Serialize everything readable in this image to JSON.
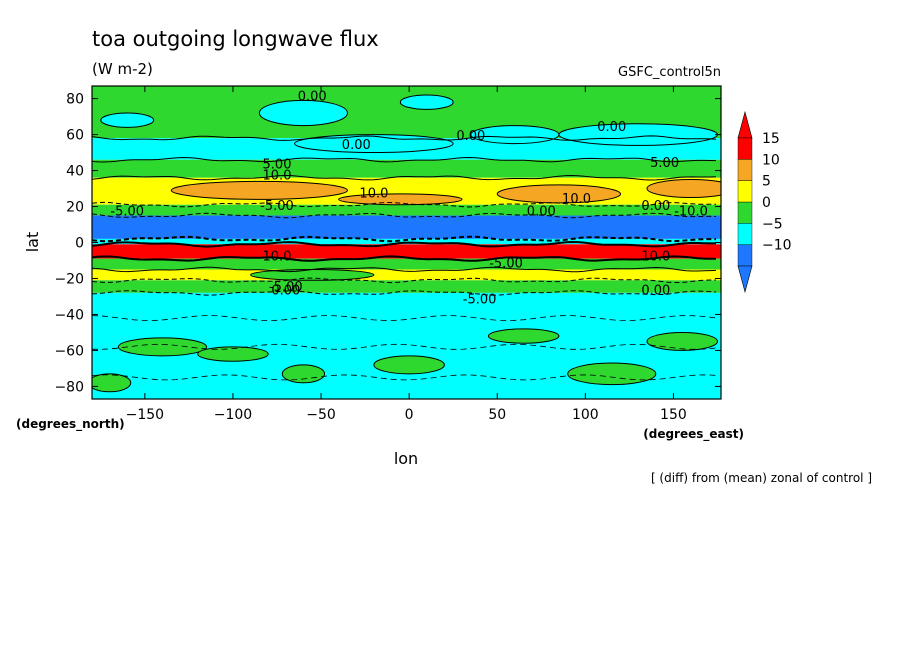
{
  "chart_data": {
    "type": "heatmap",
    "title": "toa outgoing longwave flux",
    "units": "(W m-2)",
    "dataset": "GSFC_control5n",
    "xlabel": "lon",
    "ylabel": "lat",
    "x_units": "(degrees_east)",
    "y_units": "(degrees_north)",
    "footnote": "[ (diff) from (mean) zonal of control ]",
    "xlim": [
      -180,
      177
    ],
    "ylim": [
      -87,
      87
    ],
    "x_ticks": [
      -150,
      -100,
      -50,
      0,
      50,
      100,
      150
    ],
    "y_ticks": [
      -80,
      -60,
      -40,
      -20,
      0,
      20,
      40,
      60,
      80
    ],
    "colorbar": {
      "levels": [
        "-10",
        "-5",
        "0",
        "5",
        "10",
        "15"
      ],
      "colors": [
        "#1e78ff",
        "#00ffff",
        "#2ed82e",
        "#ffff00",
        "#f5a623",
        "#ff0000"
      ],
      "extend": "both"
    },
    "bands": [
      {
        "lat_from": 58,
        "lat_to": 87,
        "color": "#2ed82e"
      },
      {
        "lat_from": 46,
        "lat_to": 58,
        "color": "#00ffff"
      },
      {
        "lat_from": 36,
        "lat_to": 46,
        "color": "#2ed82e"
      },
      {
        "lat_from": 21,
        "lat_to": 36,
        "color": "#ffff00"
      },
      {
        "lat_from": 15,
        "lat_to": 21,
        "color": "#2ed82e"
      },
      {
        "lat_from": 2,
        "lat_to": 15,
        "color": "#1e78ff"
      },
      {
        "lat_from": -1,
        "lat_to": 2,
        "color": "#00ffff"
      },
      {
        "lat_from": -9,
        "lat_to": -1,
        "color": "#ff0000"
      },
      {
        "lat_from": -15,
        "lat_to": -9,
        "color": "#2ed82e"
      },
      {
        "lat_from": -21,
        "lat_to": -15,
        "color": "#ffff00"
      },
      {
        "lat_from": -28,
        "lat_to": -21,
        "color": "#2ed82e"
      },
      {
        "lat_from": -87,
        "lat_to": -28,
        "color": "#00ffff"
      }
    ],
    "patches": [
      {
        "lon": -160,
        "lat": 68,
        "rx": 15,
        "ry": 4,
        "color": "#00ffff"
      },
      {
        "lon": -60,
        "lat": 72,
        "rx": 25,
        "ry": 7,
        "color": "#00ffff"
      },
      {
        "lon": 10,
        "lat": 78,
        "rx": 15,
        "ry": 4,
        "color": "#00ffff"
      },
      {
        "lon": -20,
        "lat": 55,
        "rx": 45,
        "ry": 5,
        "color": "#00ffff"
      },
      {
        "lon": 60,
        "lat": 60,
        "rx": 25,
        "ry": 5,
        "color": "#00ffff"
      },
      {
        "lon": 130,
        "lat": 60,
        "rx": 45,
        "ry": 6,
        "color": "#00ffff"
      },
      {
        "lon": -85,
        "lat": 29,
        "rx": 50,
        "ry": 5,
        "color": "#f5a623"
      },
      {
        "lon": -5,
        "lat": 24,
        "rx": 35,
        "ry": 3,
        "color": "#f5a623"
      },
      {
        "lon": 85,
        "lat": 27,
        "rx": 35,
        "ry": 5,
        "color": "#f5a623"
      },
      {
        "lon": 160,
        "lat": 30,
        "rx": 25,
        "ry": 5,
        "color": "#f5a623"
      },
      {
        "lon": -55,
        "lat": -18,
        "rx": 35,
        "ry": 3,
        "color": "#2ed82e"
      },
      {
        "lon": -140,
        "lat": -58,
        "rx": 25,
        "ry": 5,
        "color": "#2ed82e"
      },
      {
        "lon": -100,
        "lat": -62,
        "rx": 20,
        "ry": 4,
        "color": "#2ed82e"
      },
      {
        "lon": -60,
        "lat": -73,
        "rx": 12,
        "ry": 5,
        "color": "#2ed82e"
      },
      {
        "lon": 0,
        "lat": -68,
        "rx": 20,
        "ry": 5,
        "color": "#2ed82e"
      },
      {
        "lon": 65,
        "lat": -52,
        "rx": 20,
        "ry": 4,
        "color": "#2ed82e"
      },
      {
        "lon": 155,
        "lat": -55,
        "rx": 20,
        "ry": 5,
        "color": "#2ed82e"
      },
      {
        "lon": 115,
        "lat": -73,
        "rx": 25,
        "ry": 6,
        "color": "#2ed82e"
      },
      {
        "lon": -170,
        "lat": -78,
        "rx": 12,
        "ry": 5,
        "color": "#2ed82e"
      }
    ],
    "contour_labels": [
      {
        "text": "0.00",
        "lon": -55,
        "lat": 79
      },
      {
        "text": "0.00",
        "lon": 35,
        "lat": 57
      },
      {
        "text": "0.00",
        "lon": -30,
        "lat": 52
      },
      {
        "text": "0.00",
        "lon": 115,
        "lat": 62
      },
      {
        "text": "5.00",
        "lon": -75,
        "lat": 41
      },
      {
        "text": "5.00",
        "lon": 145,
        "lat": 42
      },
      {
        "text": "10.0",
        "lon": -75,
        "lat": 35
      },
      {
        "text": "10.0",
        "lon": -20,
        "lat": 25
      },
      {
        "text": "10.0",
        "lon": 95,
        "lat": 22
      },
      {
        "text": "-5.00",
        "lon": -160,
        "lat": 15
      },
      {
        "text": "-5.00",
        "lon": -75,
        "lat": 18
      },
      {
        "text": "0.00",
        "lon": 75,
        "lat": 15
      },
      {
        "text": "0.00",
        "lon": 140,
        "lat": 18
      },
      {
        "text": "-10.0",
        "lon": 160,
        "lat": 15
      },
      {
        "text": "10.0",
        "lon": -75,
        "lat": -10
      },
      {
        "text": "10.0",
        "lon": 140,
        "lat": -10
      },
      {
        "text": "-5.00",
        "lon": 55,
        "lat": -14
      },
      {
        "text": "-5.00",
        "lon": -70,
        "lat": -27
      },
      {
        "text": "0.00",
        "lon": -70,
        "lat": -29
      },
      {
        "text": "0.00",
        "lon": 140,
        "lat": -29
      },
      {
        "text": "-5.00",
        "lon": 40,
        "lat": -34
      }
    ]
  }
}
